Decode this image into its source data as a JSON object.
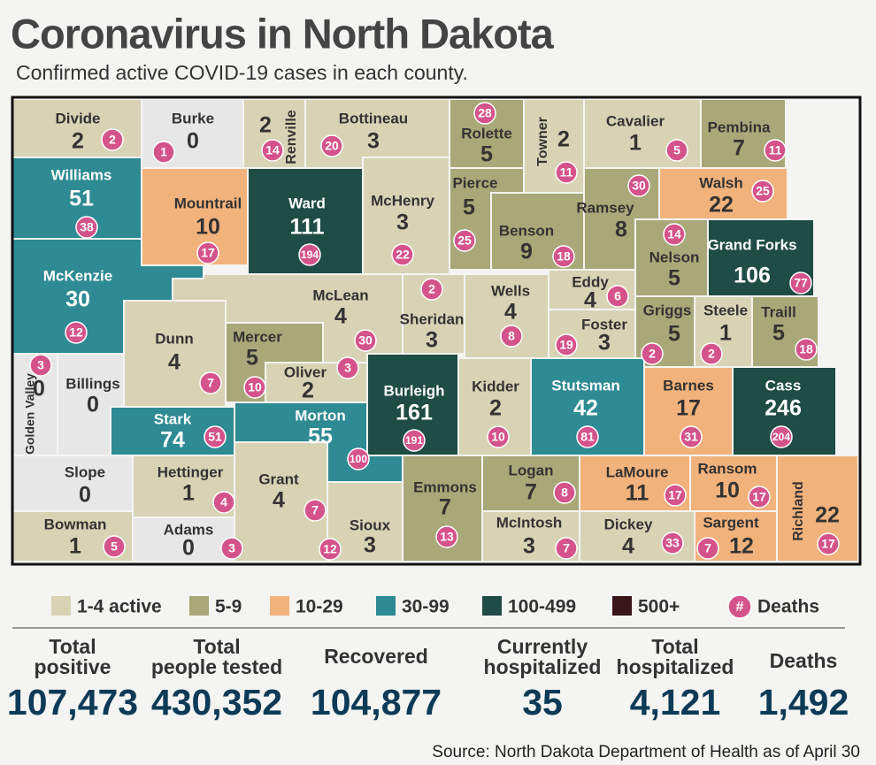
{
  "header": {
    "title": "Coronavirus in North Dakota",
    "subtitle": "Confirmed active COVID-19 cases in each county."
  },
  "map": {
    "counties": [
      {
        "name": "Divide",
        "cases": 2,
        "deaths": 2,
        "color": "#d8d3b5"
      },
      {
        "name": "Burke",
        "cases": 0,
        "deaths": 1,
        "color": "#e7e7e7"
      },
      {
        "name": "Renville",
        "cases": 2,
        "deaths": 14,
        "color": "#d8d3b5"
      },
      {
        "name": "Bottineau",
        "cases": 3,
        "deaths": 20,
        "color": "#d8d3b5"
      },
      {
        "name": "Rolette",
        "cases": 5,
        "deaths": 28,
        "color": "#a9a878"
      },
      {
        "name": "Towner",
        "cases": 2,
        "deaths": 11,
        "color": "#d8d3b5"
      },
      {
        "name": "Cavalier",
        "cases": 1,
        "deaths": 5,
        "color": "#d8d3b5"
      },
      {
        "name": "Pembina",
        "cases": 7,
        "deaths": 11,
        "color": "#a9a878"
      },
      {
        "name": "Williams",
        "cases": 51,
        "deaths": 38,
        "color": "#2e8a93"
      },
      {
        "name": "Mountrail",
        "cases": 10,
        "deaths": 17,
        "color": "#f2b27b"
      },
      {
        "name": "Ward",
        "cases": 111,
        "deaths": 194,
        "color": "#1f4c44"
      },
      {
        "name": "McHenry",
        "cases": 3,
        "deaths": 22,
        "color": "#d8d3b5"
      },
      {
        "name": "Pierce",
        "cases": 5,
        "deaths": 25,
        "color": "#a9a878"
      },
      {
        "name": "Benson",
        "cases": 9,
        "deaths": 18,
        "color": "#a9a878"
      },
      {
        "name": "Ramsey",
        "cases": 8,
        "deaths": 30,
        "color": "#a9a878"
      },
      {
        "name": "Walsh",
        "cases": 22,
        "deaths": 25,
        "color": "#f2b27b"
      },
      {
        "name": "Nelson",
        "cases": 5,
        "deaths": 14,
        "color": "#a9a878"
      },
      {
        "name": "Grand Forks",
        "cases": 106,
        "deaths": 77,
        "color": "#1f4c44"
      },
      {
        "name": "McKenzie",
        "cases": 30,
        "deaths": 12,
        "color": "#2e8a93"
      },
      {
        "name": "Dunn",
        "cases": 4,
        "deaths": 7,
        "color": "#d8d3b5"
      },
      {
        "name": "McLean",
        "cases": 4,
        "deaths": 30,
        "color": "#d8d3b5"
      },
      {
        "name": "Sheridan",
        "cases": 3,
        "deaths": 2,
        "color": "#d8d3b5"
      },
      {
        "name": "Wells",
        "cases": 4,
        "deaths": 8,
        "color": "#d8d3b5"
      },
      {
        "name": "Eddy",
        "cases": 4,
        "deaths": 6,
        "color": "#d8d3b5"
      },
      {
        "name": "Foster",
        "cases": 3,
        "deaths": 19,
        "color": "#d8d3b5"
      },
      {
        "name": "Griggs",
        "cases": 5,
        "deaths": 2,
        "color": "#a9a878"
      },
      {
        "name": "Steele",
        "cases": 1,
        "deaths": 2,
        "color": "#d8d3b5"
      },
      {
        "name": "Traill",
        "cases": 5,
        "deaths": 18,
        "color": "#a9a878"
      },
      {
        "name": "Mercer",
        "cases": 5,
        "deaths": 10,
        "color": "#a9a878"
      },
      {
        "name": "Oliver",
        "cases": 2,
        "deaths": 3,
        "color": "#d8d3b5"
      },
      {
        "name": "Golden Valley",
        "cases": 0,
        "deaths": 3,
        "color": "#e7e7e7"
      },
      {
        "name": "Billings",
        "cases": 0,
        "deaths": null,
        "color": "#e7e7e7"
      },
      {
        "name": "Burleigh",
        "cases": 161,
        "deaths": 191,
        "color": "#1f4c44"
      },
      {
        "name": "Kidder",
        "cases": 2,
        "deaths": 10,
        "color": "#d8d3b5"
      },
      {
        "name": "Stutsman",
        "cases": 42,
        "deaths": 81,
        "color": "#2e8a93"
      },
      {
        "name": "Barnes",
        "cases": 17,
        "deaths": 31,
        "color": "#f2b27b"
      },
      {
        "name": "Cass",
        "cases": 246,
        "deaths": 204,
        "color": "#1f4c44"
      },
      {
        "name": "Stark",
        "cases": 74,
        "deaths": 51,
        "color": "#2e8a93"
      },
      {
        "name": "Morton",
        "cases": 55,
        "deaths": 100,
        "color": "#2e8a93"
      },
      {
        "name": "Slope",
        "cases": 0,
        "deaths": null,
        "color": "#e7e7e7"
      },
      {
        "name": "Hettinger",
        "cases": 1,
        "deaths": 4,
        "color": "#d8d3b5"
      },
      {
        "name": "Grant",
        "cases": 4,
        "deaths": 7,
        "color": "#d8d3b5"
      },
      {
        "name": "Emmons",
        "cases": 7,
        "deaths": 13,
        "color": "#a9a878"
      },
      {
        "name": "Logan",
        "cases": 7,
        "deaths": 8,
        "color": "#a9a878"
      },
      {
        "name": "LaMoure",
        "cases": 11,
        "deaths": 17,
        "color": "#f2b27b"
      },
      {
        "name": "Ransom",
        "cases": 10,
        "deaths": 17,
        "color": "#f2b27b"
      },
      {
        "name": "Richland",
        "cases": 22,
        "deaths": 17,
        "color": "#f2b27b"
      },
      {
        "name": "Bowman",
        "cases": 1,
        "deaths": 5,
        "color": "#d8d3b5"
      },
      {
        "name": "Adams",
        "cases": 0,
        "deaths": 3,
        "color": "#e7e7e7"
      },
      {
        "name": "Sioux",
        "cases": 3,
        "deaths": 12,
        "color": "#d8d3b5"
      },
      {
        "name": "McIntosh",
        "cases": 3,
        "deaths": 7,
        "color": "#d8d3b5"
      },
      {
        "name": "Dickey",
        "cases": 4,
        "deaths": 33,
        "color": "#d8d3b5"
      },
      {
        "name": "Sargent",
        "cases": 12,
        "deaths": 7,
        "color": "#f2b27b"
      }
    ]
  },
  "legend": {
    "items": [
      {
        "label": "1-4 active",
        "color": "#d8d3b5"
      },
      {
        "label": "5-9",
        "color": "#a9a878"
      },
      {
        "label": "10-29",
        "color": "#f2b27b"
      },
      {
        "label": "30-99",
        "color": "#2e8a93"
      },
      {
        "label": "100-499",
        "color": "#1f4c44"
      },
      {
        "label": "500+",
        "color": "#3a1519"
      }
    ],
    "deaths_symbol": "#",
    "deaths_label": "Deaths",
    "deaths_color": "#d4538b"
  },
  "stats": [
    {
      "label": [
        "Total",
        "positive"
      ],
      "value": "107,473"
    },
    {
      "label": [
        "Total",
        "people tested"
      ],
      "value": "430,352"
    },
    {
      "label": [
        "Recovered"
      ],
      "value": "104,877"
    },
    {
      "label": [
        "Currently",
        "hospitalized"
      ],
      "value": "35"
    },
    {
      "label": [
        "Total",
        "hospitalized"
      ],
      "value": "4,121"
    },
    {
      "label": [
        "Deaths"
      ],
      "value": "1,492"
    }
  ],
  "source": "Source: North Dakota Department of Health as of April 30"
}
